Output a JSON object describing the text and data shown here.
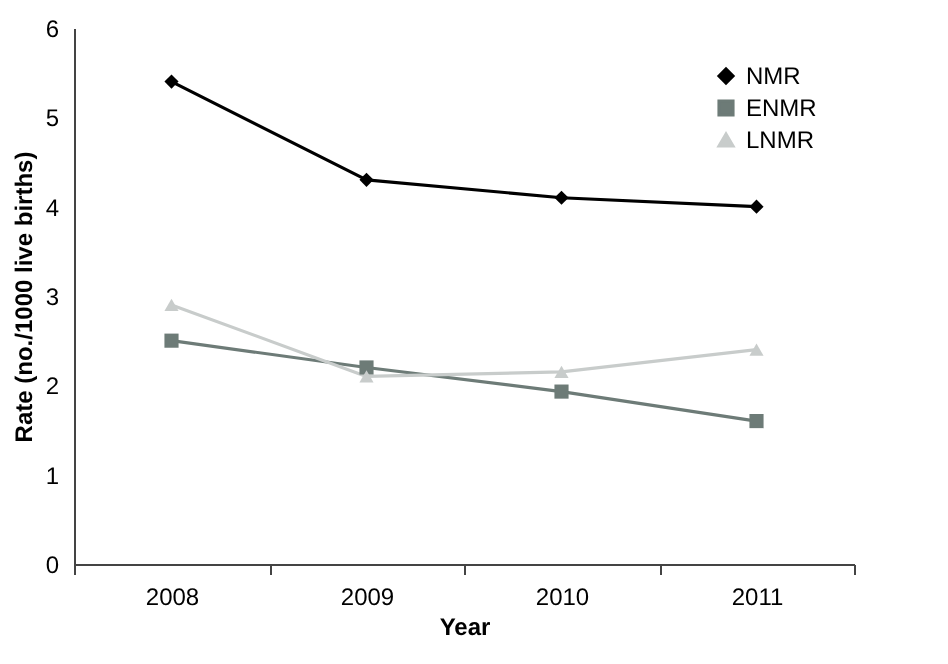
{
  "chart_data": {
    "type": "line",
    "xlabel": "Year",
    "ylabel": "Rate (no./1000 live births)",
    "categories": [
      "2008",
      "2009",
      "2010",
      "2011"
    ],
    "series": [
      {
        "name": "NMR",
        "color": "#000000",
        "marker": "diamond",
        "values": [
          5.4,
          4.3,
          4.1,
          4.0
        ]
      },
      {
        "name": "ENMR",
        "color": "#6d7b77",
        "marker": "square",
        "values": [
          2.5,
          2.2,
          1.93,
          1.6
        ]
      },
      {
        "name": "LNMR",
        "color": "#c8cccb",
        "marker": "triangle",
        "values": [
          2.9,
          2.1,
          2.15,
          2.4
        ]
      }
    ],
    "ylim": [
      0,
      6
    ],
    "yticks": [
      0,
      1,
      2,
      3,
      4,
      5,
      6
    ],
    "grid": false,
    "legend": "top right",
    "line_style": "solid"
  }
}
